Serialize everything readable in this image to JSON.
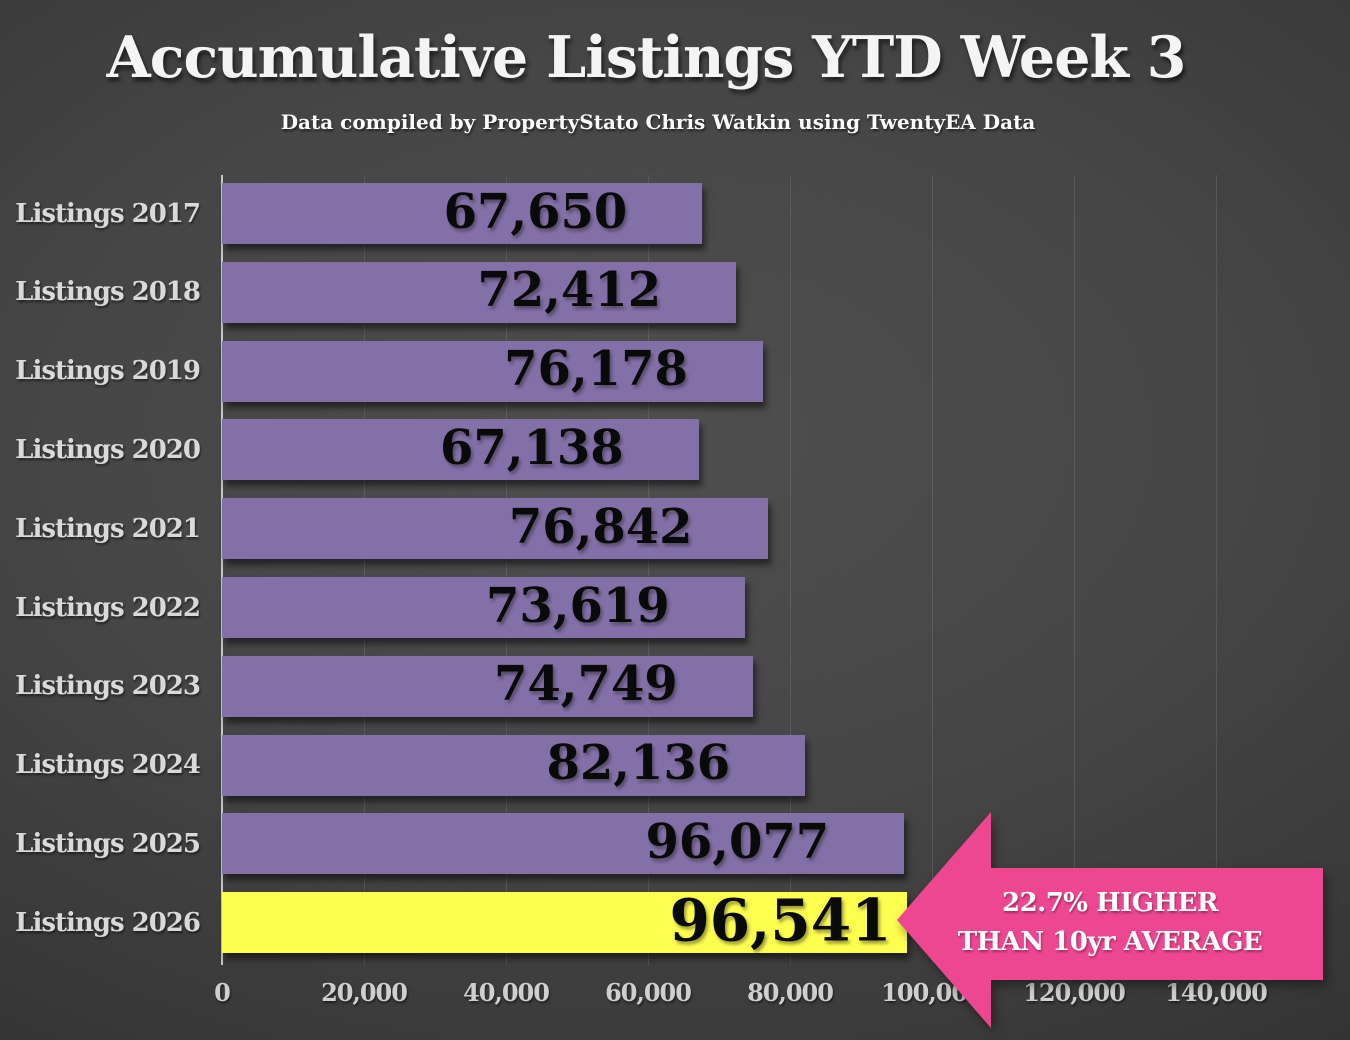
{
  "title": "Accumulative Listings YTD Week 3",
  "subtitle": "Data compiled by PropertyStato Chris Watkin using TwentyEA Data",
  "annotation": {
    "line1": "22.7% HIGHER",
    "line2": "THAN 10yr AVERAGE"
  },
  "colors": {
    "bar": "#8470A8",
    "highlight_bar": "#FEFE4F",
    "arrow": "#EE4791",
    "background_center": "#4f4f4f",
    "background_edge": "#232323",
    "value_text": "#0a0a0a",
    "label_text": "#d9d9d9"
  },
  "chart_data": {
    "type": "bar",
    "orientation": "horizontal",
    "title": "Accumulative Listings YTD Week 3",
    "subtitle": "Data compiled by PropertyStato Chris Watkin using TwentyEA Data",
    "categories": [
      "Listings 2017",
      "Listings 2018",
      "Listings 2019",
      "Listings 2020",
      "Listings 2021",
      "Listings 2022",
      "Listings 2023",
      "Listings 2024",
      "Listings 2025",
      "Listings 2026"
    ],
    "values": [
      67650,
      72412,
      76178,
      67138,
      76842,
      73619,
      74749,
      82136,
      96077,
      96541
    ],
    "value_labels": [
      "67,650",
      "72,412",
      "76,178",
      "67,138",
      "76,842",
      "73,619",
      "74,749",
      "82,136",
      "96,077",
      "96,541"
    ],
    "highlight_index": 9,
    "xlim": [
      0,
      140000
    ],
    "x_ticks": [
      "0",
      "20,000",
      "40,000",
      "60,000",
      "80,000",
      "100,000",
      "120,000",
      "140,000"
    ],
    "x_tick_values": [
      0,
      20000,
      40000,
      60000,
      80000,
      100000,
      120000,
      140000
    ],
    "grid": true,
    "legend": false,
    "annotation": "22.7% HIGHER THAN 10yr AVERAGE"
  }
}
